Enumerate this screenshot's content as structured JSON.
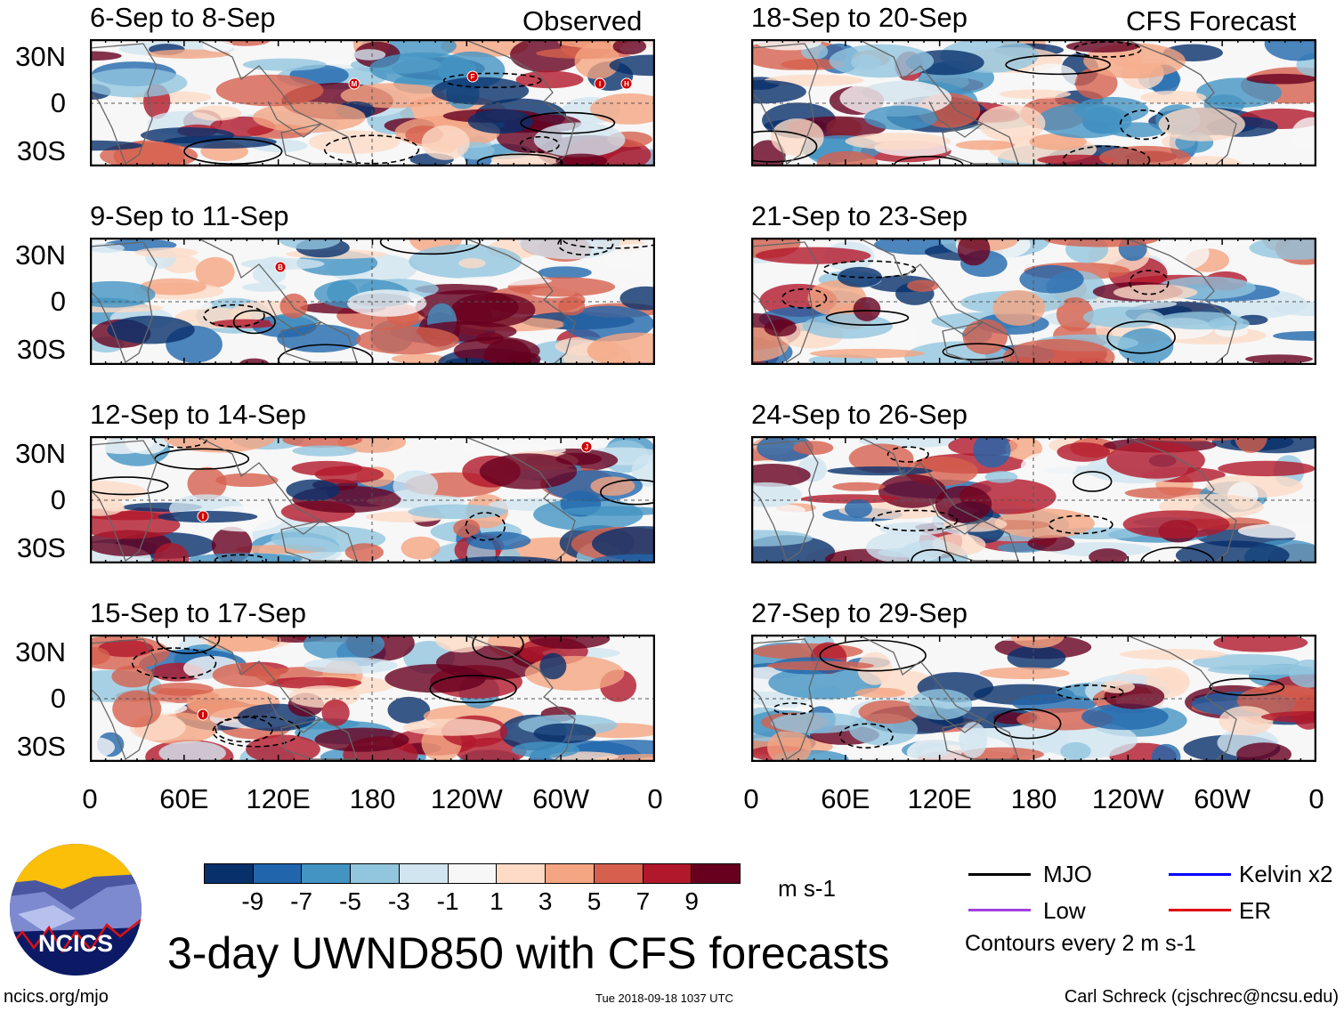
{
  "chart_data": {
    "type": "heatmap",
    "title": "3-day UWND850 with CFS forecasts",
    "variable": "850 hPa zonal wind anomaly",
    "units": "m s-1",
    "colorbar": {
      "ticks": [
        "-9",
        "-7",
        "-5",
        "-3",
        "-1",
        "1",
        "3",
        "5",
        "7",
        "9"
      ],
      "colors": [
        "#08306b",
        "#2166ac",
        "#4393c3",
        "#92c5de",
        "#d1e5f0",
        "#f7f7f7",
        "#fddbc7",
        "#f4a582",
        "#d6604d",
        "#b2182b",
        "#67001f"
      ]
    },
    "lat_labels": [
      "30N",
      "0",
      "30S"
    ],
    "lon_labels": [
      "0",
      "60E",
      "120E",
      "180",
      "120W",
      "60W",
      "0"
    ],
    "panels_observed_label": "Observed",
    "panels_forecast_label": "CFS Forecast",
    "panels": [
      {
        "title": "6-Sep to 8-Sep",
        "storms": [
          "M",
          "F",
          "I",
          "H"
        ]
      },
      {
        "title": "9-Sep to 11-Sep",
        "storms": [
          "B"
        ]
      },
      {
        "title": "12-Sep to 14-Sep",
        "storms": [
          "I",
          "J"
        ]
      },
      {
        "title": "15-Sep to 17-Sep",
        "storms": [
          "I"
        ]
      },
      {
        "title": "18-Sep to 20-Sep",
        "storms": []
      },
      {
        "title": "21-Sep to 23-Sep",
        "storms": []
      },
      {
        "title": "24-Sep to 26-Sep",
        "storms": []
      },
      {
        "title": "27-Sep to 29-Sep",
        "storms": []
      }
    ],
    "legend": {
      "items": [
        {
          "label": "MJO",
          "color": "#000000"
        },
        {
          "label": "Kelvin x2",
          "color": "#0000ff"
        },
        {
          "label": "Low",
          "color": "#a040e0"
        },
        {
          "label": "ER",
          "color": "#e00000"
        }
      ],
      "contour_note": "Contours every 2 m s-1"
    }
  },
  "logo": {
    "text": "NCICS"
  },
  "footer": {
    "url": "ncics.org/mjo",
    "timestamp": "Tue 2018-09-18 1037 UTC",
    "author": "Carl Schreck (cjschrec@ncsu.edu)"
  }
}
